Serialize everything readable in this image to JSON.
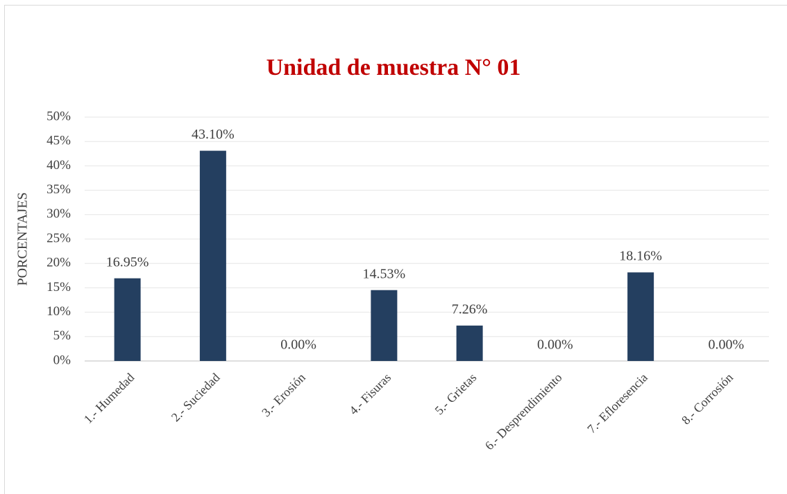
{
  "chart_data": {
    "type": "bar",
    "title": "Unidad de muestra N° 01",
    "ylabel": "PORCENTAJES",
    "categories": [
      "1.- Humedad",
      "2.- Suciedad",
      "3.- Erosión",
      "4.- Fisuras",
      "5.- Grietas",
      "6.- Desprendimiento",
      "7.- Efloresencia",
      "8.- Corrosión"
    ],
    "values": [
      16.95,
      43.1,
      0,
      14.53,
      7.26,
      0,
      18.16,
      0
    ],
    "value_labels": [
      "16.95%",
      "43.10%",
      "0.00%",
      "14.53%",
      "7.26%",
      "0.00%",
      "18.16%",
      "0.00%"
    ],
    "color": "#243f60",
    "title_color": "#c00000",
    "ylim": [
      0,
      50
    ],
    "yticks": [
      {
        "value": 0,
        "label": "0%"
      },
      {
        "value": 5,
        "label": "5%"
      },
      {
        "value": 10,
        "label": "10%"
      },
      {
        "value": 15,
        "label": "15%"
      },
      {
        "value": 20,
        "label": "20%"
      },
      {
        "value": 25,
        "label": "25%"
      },
      {
        "value": 30,
        "label": "30%"
      },
      {
        "value": 35,
        "label": "35%"
      },
      {
        "value": 40,
        "label": "40%"
      },
      {
        "value": 45,
        "label": "45%"
      },
      {
        "value": 50,
        "label": "50%"
      }
    ],
    "grid": true
  }
}
